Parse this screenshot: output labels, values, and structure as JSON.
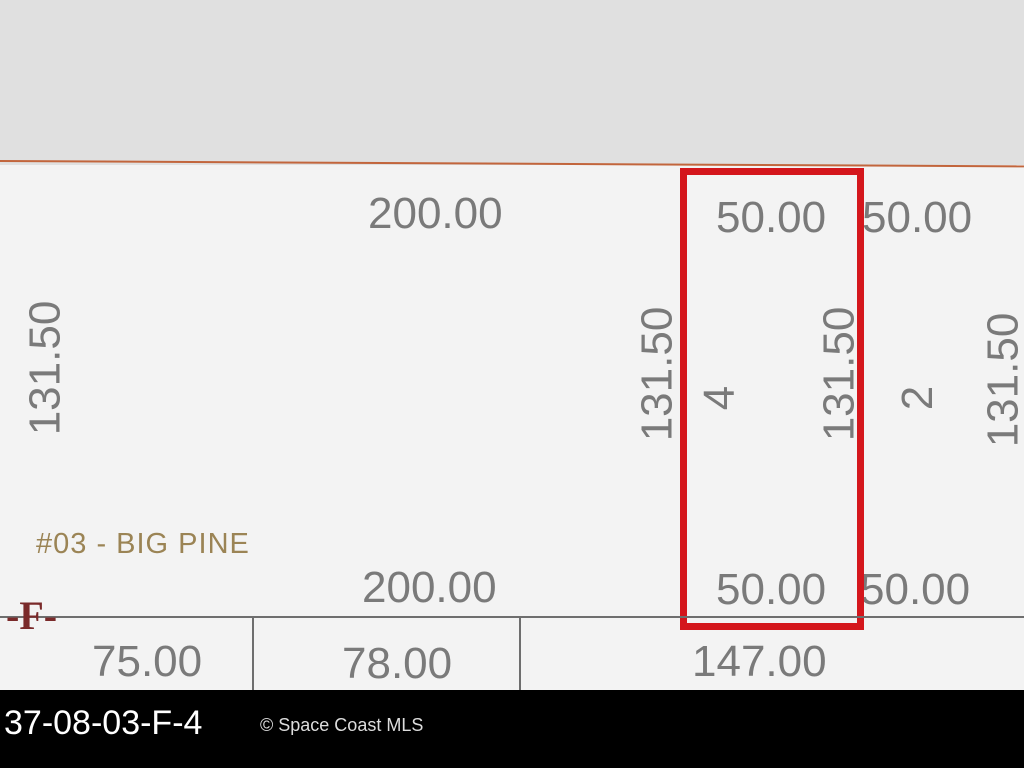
{
  "map": {
    "dimensions": {
      "top_left": "200.00",
      "bottom_left": "200.00",
      "left_side": "131.50",
      "lot4_left": "131.50",
      "lot4_right": "131.50",
      "lot4_top": "50.00",
      "lot4_bottom": "50.00",
      "lot2_top": "50.00",
      "lot2_bottom": "50.00",
      "lot2_right": "131.50",
      "lower_1": "75.00",
      "lower_2": "78.00",
      "lower_3": "147.00"
    },
    "lots": {
      "lot4": "4",
      "lot2": "2"
    },
    "subdivision_label": "#03 - BIG PINE",
    "block_label": "-F-",
    "highlight_color": "#d4161c"
  },
  "footer": {
    "parcel_id": "37-08-03-F-4",
    "watermark": "© Space Coast MLS"
  }
}
